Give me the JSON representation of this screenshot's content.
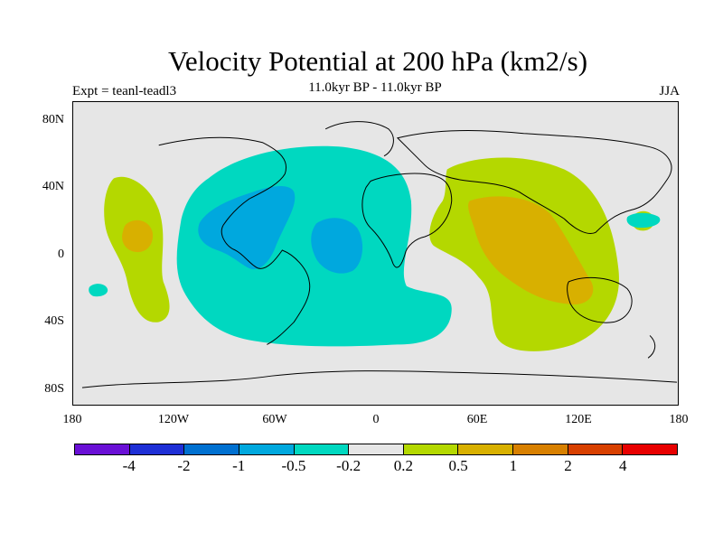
{
  "title": "Velocity Potential at 200 hPa (km2/s)",
  "subtitle": "11.0kyr BP - 11.0kyr BP",
  "left_label": "Expt = teanl-teadl3",
  "right_label": "JJA",
  "lat_labels": [
    "80N",
    "40N",
    "0",
    "40S",
    "80S"
  ],
  "lon_labels": [
    "180",
    "120W",
    "60W",
    "0",
    "60E",
    "120E",
    "180"
  ],
  "colorbar": {
    "colors": [
      "#6a10d6",
      "#1e2fd6",
      "#0070d0",
      "#00a8de",
      "#00d8c0",
      "#e6e6e6",
      "#b4d800",
      "#d8b000",
      "#d88000",
      "#d84000",
      "#e80000"
    ],
    "labels": [
      "-4",
      "-2",
      "-1",
      "-0.5",
      "-0.2",
      "0.2",
      "0.5",
      "1",
      "2",
      "4"
    ]
  },
  "colors": {
    "background": "#e6e6e6",
    "negative_light": "#00d8c0",
    "negative_medium": "#00a8de",
    "positive_light": "#b4d800",
    "positive_medium": "#d8b000"
  }
}
